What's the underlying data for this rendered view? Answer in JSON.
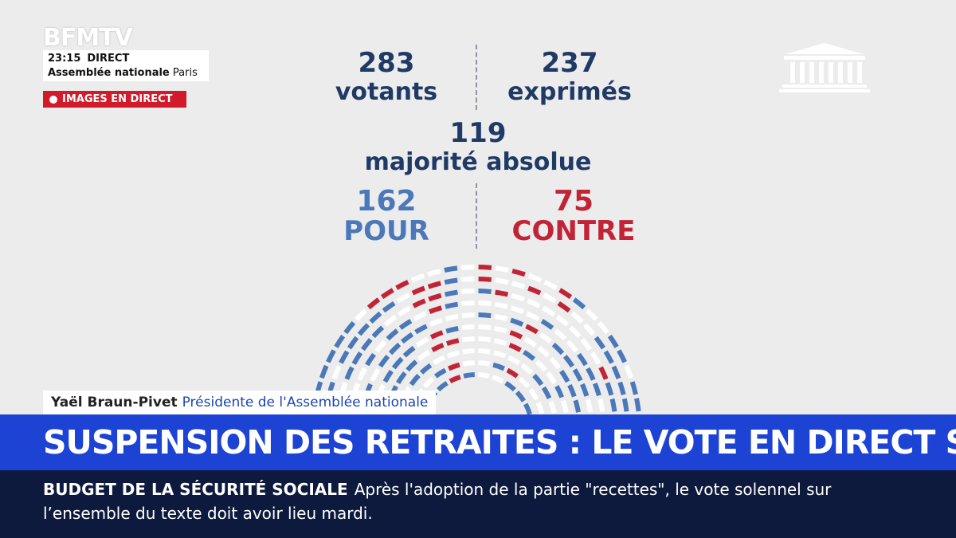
{
  "broadcast": {
    "logo": "BFMTV",
    "time": "23:15",
    "live_label": "DIRECT",
    "location_bold": "Assemblée nationale",
    "location_city": "Paris",
    "images_tag": "IMAGES EN DIRECT"
  },
  "results": {
    "votants_value": "283",
    "votants_label": "votants",
    "exprimes_value": "237",
    "exprimes_label": "exprimés",
    "majorite_value": "119",
    "majorite_label": "majorité absolue",
    "pour_value": "162",
    "pour_label": "POUR",
    "contre_value": "75",
    "contre_label": "CONTRE"
  },
  "colors": {
    "pour": "#4a78b8",
    "contre": "#c22437",
    "neutral": "#ffffff",
    "headline_band": "#1c43d4",
    "ticker_band": "#0d1a3d"
  },
  "lower_third": {
    "name": "Yaël Braun-Pivet",
    "title": "Présidente de l'Assemblée nationale"
  },
  "headline": "SUSPENSION DES RETRAITES : LE VOTE EN DIRECT SUR BFMTV",
  "ticker": {
    "kicker": "BUDGET DE LA SÉCURITÉ SOCIALE",
    "text": "Après l'adoption de la partie \"recettes\", le vote solennel sur l’ensemble du texte doit avoir lieu mardi."
  }
}
